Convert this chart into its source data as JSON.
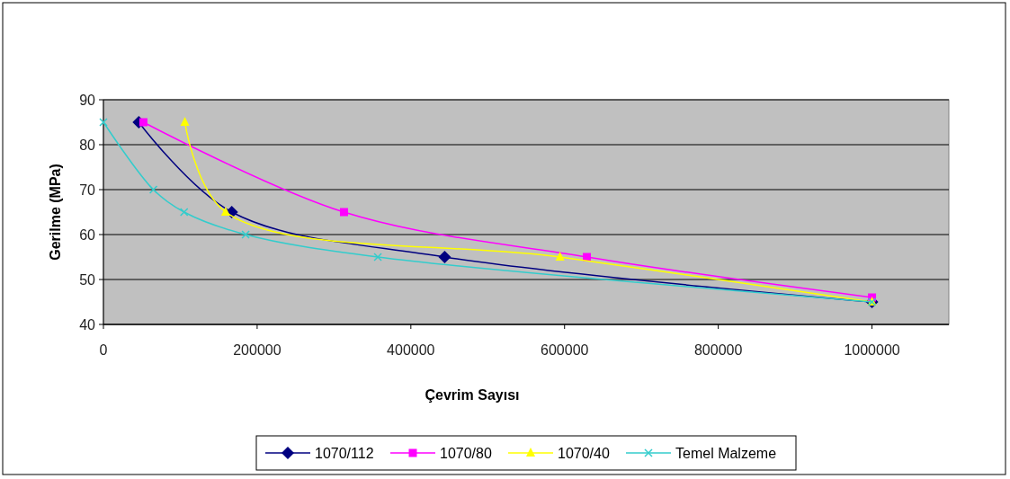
{
  "chart_data": {
    "type": "line",
    "xlabel": "Çevrim Sayısı",
    "ylabel": "Gerilme (MPa)",
    "xlim": [
      0,
      1100000
    ],
    "xticks": [
      0,
      200000,
      400000,
      600000,
      800000,
      1000000
    ],
    "ylim": [
      40,
      90
    ],
    "yticks": [
      40,
      50,
      60,
      70,
      80,
      90
    ],
    "grid": "y",
    "legend": "bottom",
    "series": [
      {
        "name": "1070/112",
        "color": "#000080",
        "marker": "diamond",
        "x": [
          46000,
          167000,
          444000,
          1000000
        ],
        "values": [
          85,
          65,
          55,
          45
        ]
      },
      {
        "name": "1070/80",
        "color": "#ff00ff",
        "marker": "square",
        "x": [
          52000,
          313000,
          629000,
          1000000
        ],
        "values": [
          85,
          65,
          55,
          46
        ]
      },
      {
        "name": "1070/40",
        "color": "#ffff00",
        "marker": "triangle",
        "x": [
          106000,
          159000,
          594000,
          1000000
        ],
        "values": [
          85,
          65,
          55,
          45
        ]
      },
      {
        "name": "Temel Malzeme",
        "color": "#33cccc",
        "marker": "cross",
        "x": [
          0,
          65000,
          105000,
          185000,
          357000,
          1000000
        ],
        "values": [
          85,
          70,
          65,
          60,
          55,
          45
        ]
      }
    ]
  }
}
